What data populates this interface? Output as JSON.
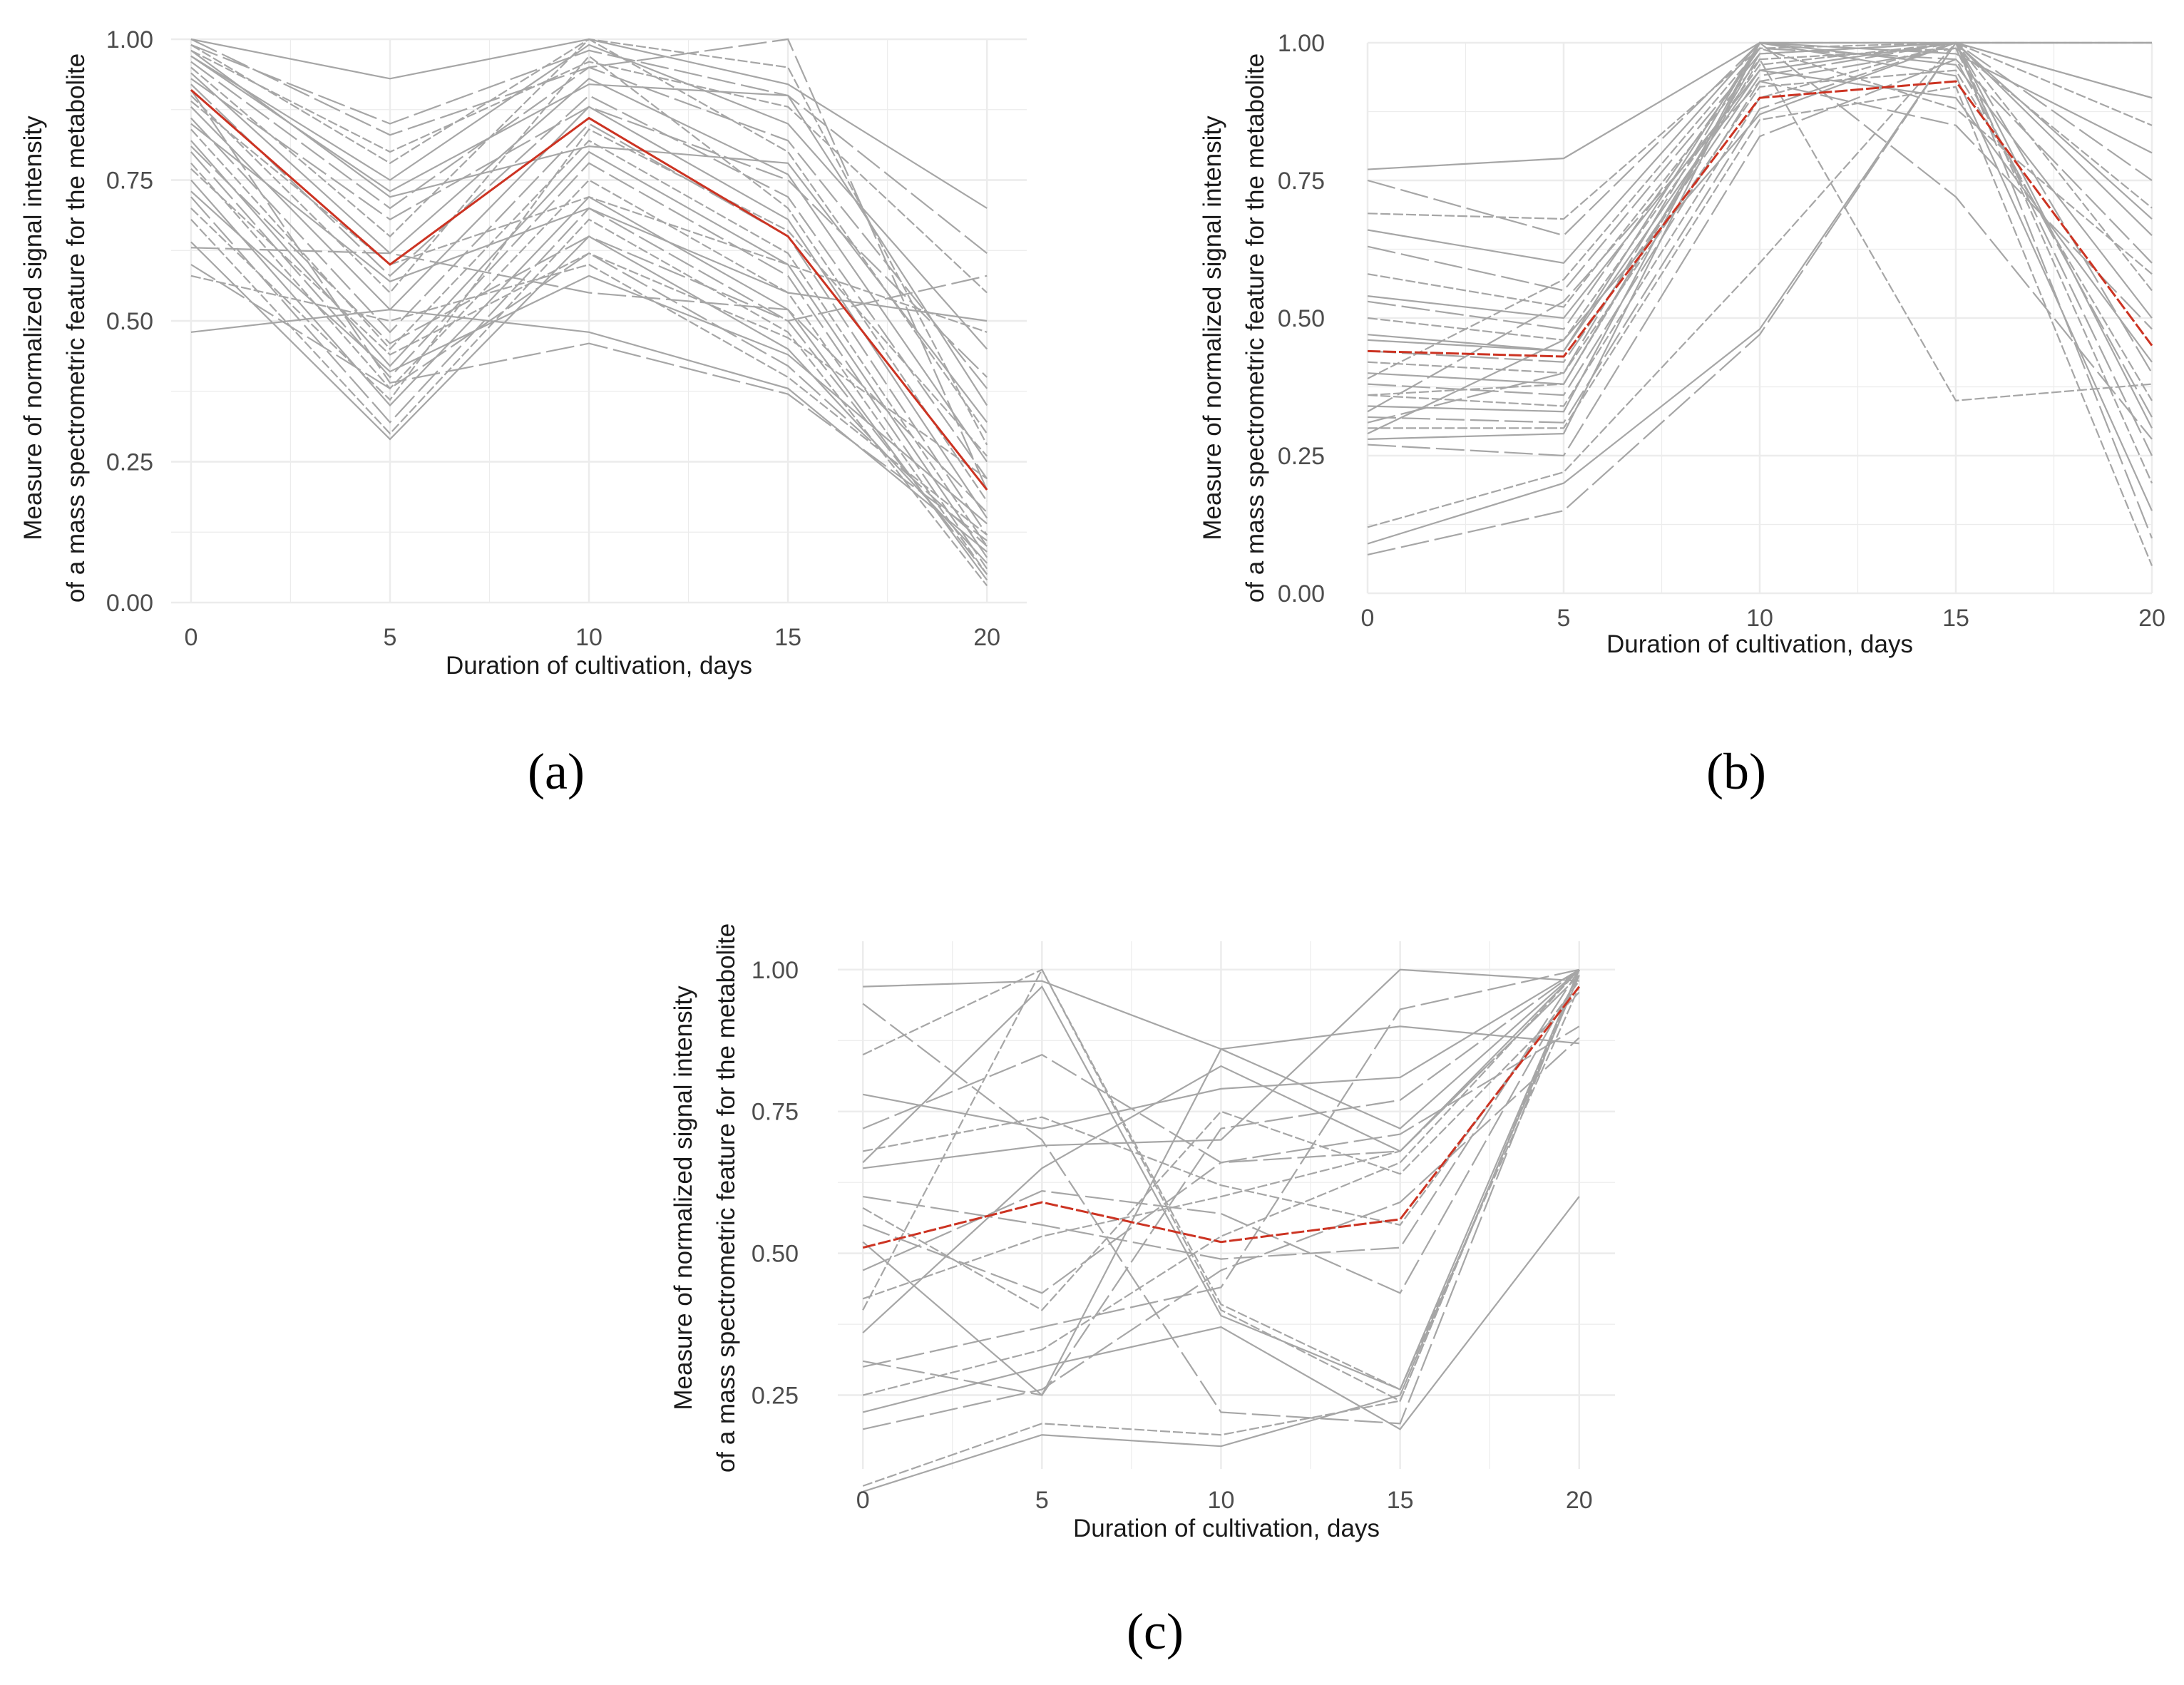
{
  "captions": {
    "a": "(a)",
    "b": "(b)",
    "c": "(c)"
  },
  "colors": {
    "profile": "#a6a6a6",
    "mean": "#cc3322",
    "grid": "#ececec"
  },
  "chart_data": [
    {
      "type": "line",
      "panel": "a",
      "title": "",
      "xlabel": "Duration of cultivation, days",
      "ylabel": [
        "Measure of normalized signal intensity",
        "of a mass spectrometric feature for the metabolite"
      ],
      "x": [
        0,
        5,
        10,
        15,
        20
      ],
      "xlim": [
        -0.5,
        21
      ],
      "ylim": [
        0,
        1.0
      ],
      "yticks": [
        0.0,
        0.25,
        0.5,
        0.75,
        1.0
      ],
      "ytick_labels": [
        "0.00",
        "0.25",
        "0.50",
        "0.75",
        "1.00"
      ],
      "xticks": [
        0,
        5,
        10,
        15,
        20
      ],
      "grid": true,
      "mean_line": [
        0.91,
        0.6,
        0.86,
        0.65,
        0.2
      ],
      "series": [
        {
          "values": [
            1.0,
            0.93,
            1.0,
            0.92,
            0.7
          ]
        },
        {
          "values": [
            0.99,
            0.85,
            0.98,
            0.9,
            0.62
          ]
        },
        {
          "values": [
            0.98,
            0.8,
            0.96,
            0.88,
            0.55
          ]
        },
        {
          "values": [
            0.97,
            0.75,
            0.99,
            0.85,
            0.45
          ]
        },
        {
          "values": [
            0.96,
            0.7,
            0.95,
            0.82,
            0.38
          ]
        },
        {
          "values": [
            0.95,
            0.65,
            1.0,
            0.8,
            0.3
          ]
        },
        {
          "values": [
            0.94,
            0.62,
            0.93,
            0.76,
            0.25
          ]
        },
        {
          "values": [
            0.92,
            0.58,
            0.9,
            0.72,
            0.22
          ]
        },
        {
          "values": [
            0.9,
            0.55,
            0.97,
            0.7,
            0.18
          ]
        },
        {
          "values": [
            0.88,
            0.52,
            0.88,
            0.68,
            0.15
          ]
        },
        {
          "values": [
            0.86,
            0.48,
            0.85,
            0.65,
            0.12
          ]
        },
        {
          "values": [
            0.84,
            0.45,
            0.82,
            0.62,
            0.1
          ]
        },
        {
          "values": [
            0.82,
            0.42,
            0.8,
            0.6,
            0.08
          ]
        },
        {
          "values": [
            0.8,
            0.4,
            0.78,
            0.58,
            0.06
          ]
        },
        {
          "values": [
            0.78,
            0.38,
            0.75,
            0.55,
            0.05
          ]
        },
        {
          "values": [
            0.75,
            0.35,
            0.72,
            0.52,
            0.04
          ]
        },
        {
          "values": [
            0.72,
            0.32,
            0.7,
            0.5,
            0.05
          ]
        },
        {
          "values": [
            0.68,
            0.3,
            0.68,
            0.48,
            0.03
          ]
        },
        {
          "values": [
            0.64,
            0.29,
            0.65,
            0.45,
            0.07
          ]
        },
        {
          "values": [
            0.6,
            0.38,
            0.62,
            0.42,
            0.1
          ]
        },
        {
          "values": [
            0.58,
            0.5,
            0.6,
            0.4,
            0.12
          ]
        },
        {
          "values": [
            0.48,
            0.52,
            0.48,
            0.38,
            0.09
          ]
        },
        {
          "values": [
            1.0,
            0.83,
            0.95,
            1.0,
            0.2
          ]
        },
        {
          "values": [
            0.99,
            0.78,
            1.0,
            0.95,
            0.28
          ]
        },
        {
          "values": [
            0.97,
            0.73,
            0.92,
            0.9,
            0.35
          ]
        },
        {
          "values": [
            0.93,
            0.68,
            0.88,
            0.75,
            0.4
          ]
        },
        {
          "values": [
            0.89,
            0.6,
            0.72,
            0.6,
            0.48
          ]
        },
        {
          "values": [
            0.85,
            0.57,
            0.7,
            0.55,
            0.5
          ]
        },
        {
          "values": [
            0.81,
            0.46,
            0.65,
            0.5,
            0.58
          ]
        },
        {
          "values": [
            0.77,
            0.44,
            0.62,
            0.47,
            0.22
          ]
        },
        {
          "values": [
            0.73,
            0.41,
            0.58,
            0.44,
            0.14
          ]
        },
        {
          "values": [
            0.63,
            0.62,
            0.55,
            0.52,
            0.16
          ]
        },
        {
          "values": [
            0.7,
            0.36,
            0.84,
            0.66,
            0.26
          ]
        },
        {
          "values": [
            0.98,
            0.72,
            0.81,
            0.78,
            0.32
          ]
        },
        {
          "values": [
            0.91,
            0.39,
            0.46,
            0.37,
            0.11
          ]
        }
      ]
    },
    {
      "type": "line",
      "panel": "b",
      "title": "",
      "xlabel": "Duration of cultivation, days",
      "ylabel": [
        "Measure of normalized signal intensity",
        "of a mass spectrometric feature for the metabolite"
      ],
      "x": [
        0,
        5,
        10,
        15,
        20
      ],
      "xlim": [
        0,
        20
      ],
      "ylim": [
        0,
        1.0
      ],
      "yticks": [
        0.0,
        0.25,
        0.5,
        0.75,
        1.0
      ],
      "ytick_labels": [
        "0.00",
        "0.25",
        "0.50",
        "0.75",
        "1.00"
      ],
      "xticks": [
        0,
        5,
        10,
        15,
        20
      ],
      "grid": true,
      "mean_line": [
        0.44,
        0.43,
        0.9,
        0.93,
        0.45
      ],
      "series": [
        {
          "values": [
            0.77,
            0.79,
            1.0,
            1.0,
            1.0
          ]
        },
        {
          "values": [
            0.75,
            0.65,
            1.0,
            1.0,
            0.9
          ]
        },
        {
          "values": [
            0.69,
            0.68,
            0.99,
            1.0,
            0.85
          ]
        },
        {
          "values": [
            0.66,
            0.6,
            1.0,
            0.98,
            0.8
          ]
        },
        {
          "values": [
            0.63,
            0.55,
            0.98,
            1.0,
            0.75
          ]
        },
        {
          "values": [
            0.58,
            0.52,
            0.97,
            0.99,
            0.7
          ]
        },
        {
          "values": [
            0.54,
            0.5,
            0.95,
            1.0,
            0.65
          ]
        },
        {
          "values": [
            0.53,
            0.48,
            0.99,
            0.97,
            0.6
          ]
        },
        {
          "values": [
            0.5,
            0.46,
            0.96,
            1.0,
            0.55
          ]
        },
        {
          "values": [
            0.47,
            0.44,
            1.0,
            0.96,
            0.5
          ]
        },
        {
          "values": [
            0.44,
            0.42,
            0.94,
            1.0,
            0.4
          ]
        },
        {
          "values": [
            0.42,
            0.4,
            0.92,
            0.95,
            0.35
          ]
        },
        {
          "values": [
            0.4,
            0.38,
            0.98,
            1.0,
            0.3
          ]
        },
        {
          "values": [
            0.38,
            0.36,
            0.93,
            0.99,
            0.25
          ]
        },
        {
          "values": [
            0.36,
            0.34,
            0.9,
            1.0,
            0.2
          ]
        },
        {
          "values": [
            0.34,
            0.33,
            1.0,
            0.94,
            0.15
          ]
        },
        {
          "values": [
            0.32,
            0.31,
            0.88,
            1.0,
            0.1
          ]
        },
        {
          "values": [
            0.3,
            0.3,
            0.86,
            0.92,
            0.05
          ]
        },
        {
          "values": [
            0.28,
            0.29,
            1.0,
            1.0,
            0.9
          ]
        },
        {
          "values": [
            0.27,
            0.25,
            0.83,
            0.97,
            0.32
          ]
        },
        {
          "values": [
            0.12,
            0.22,
            0.6,
            1.0,
            1.0
          ]
        },
        {
          "values": [
            0.09,
            0.2,
            0.48,
            1.0,
            1.0
          ]
        },
        {
          "values": [
            0.07,
            0.15,
            0.47,
            1.0,
            1.0
          ]
        },
        {
          "values": [
            0.36,
            0.38,
            0.97,
            0.35,
            0.38
          ]
        },
        {
          "values": [
            0.46,
            0.44,
            0.95,
            0.9,
            0.42
          ]
        },
        {
          "values": [
            0.33,
            0.53,
            0.93,
            0.85,
            0.48
          ]
        },
        {
          "values": [
            0.39,
            0.57,
            0.99,
            0.88,
            0.58
          ]
        },
        {
          "values": [
            0.29,
            0.46,
            0.87,
            1.0,
            0.68
          ]
        },
        {
          "values": [
            0.31,
            0.4,
            1.0,
            0.72,
            0.28
          ]
        }
      ]
    },
    {
      "type": "line",
      "panel": "c",
      "title": "",
      "xlabel": "Duration of cultivation, days",
      "ylabel": [
        "Measure of normalized signal intensity",
        "of a mass spectrometric feature for the metabolite"
      ],
      "x": [
        0,
        5,
        10,
        15,
        20
      ],
      "xlim": [
        -0.7,
        21
      ],
      "ylim": [
        0.12,
        1.05
      ],
      "yticks": [
        0.25,
        0.5,
        0.75,
        1.0
      ],
      "ytick_labels": [
        "0.25",
        "0.50",
        "0.75",
        "1.00"
      ],
      "xticks": [
        0,
        5,
        10,
        15,
        20
      ],
      "grid": true,
      "mean_line": [
        0.51,
        0.59,
        0.52,
        0.56,
        0.97
      ],
      "series": [
        {
          "values": [
            0.97,
            0.98,
            0.86,
            0.9,
            0.87
          ]
        },
        {
          "values": [
            0.94,
            0.7,
            0.22,
            0.2,
            1.0
          ]
        },
        {
          "values": [
            0.85,
            1.0,
            0.4,
            0.24,
            1.0
          ]
        },
        {
          "values": [
            0.78,
            0.72,
            0.79,
            0.81,
            1.0
          ]
        },
        {
          "values": [
            0.72,
            0.85,
            0.66,
            0.68,
            0.99
          ]
        },
        {
          "values": [
            0.68,
            0.74,
            0.62,
            0.55,
            0.98
          ]
        },
        {
          "values": [
            0.65,
            0.69,
            0.7,
            1.0,
            0.98
          ]
        },
        {
          "values": [
            0.6,
            0.55,
            0.49,
            0.51,
            1.0
          ]
        },
        {
          "values": [
            0.58,
            0.4,
            0.75,
            0.64,
            0.96
          ]
        },
        {
          "values": [
            0.52,
            0.25,
            0.86,
            0.72,
            1.0
          ]
        },
        {
          "values": [
            0.47,
            0.61,
            0.57,
            0.43,
            0.99
          ]
        },
        {
          "values": [
            0.4,
            1.0,
            0.41,
            0.26,
            0.97
          ]
        },
        {
          "values": [
            0.36,
            0.65,
            0.83,
            0.68,
            1.0
          ]
        },
        {
          "values": [
            0.3,
            0.37,
            0.44,
            0.93,
            1.0
          ]
        },
        {
          "values": [
            0.25,
            0.33,
            0.53,
            0.66,
            1.0
          ]
        },
        {
          "values": [
            0.22,
            0.3,
            0.37,
            0.19,
            0.6
          ]
        },
        {
          "values": [
            0.19,
            0.26,
            0.47,
            0.59,
            0.88
          ]
        },
        {
          "values": [
            0.09,
            0.2,
            0.18,
            0.24,
            1.0
          ]
        },
        {
          "values": [
            0.08,
            0.18,
            0.16,
            0.25,
            0.99
          ]
        },
        {
          "values": [
            0.31,
            0.25,
            0.72,
            0.77,
            1.0
          ]
        },
        {
          "values": [
            0.42,
            0.53,
            0.6,
            0.68,
            0.99
          ]
        },
        {
          "values": [
            0.66,
            0.97,
            0.39,
            0.26,
            1.0
          ]
        },
        {
          "values": [
            0.55,
            0.43,
            0.66,
            0.71,
            0.9
          ]
        }
      ]
    }
  ]
}
